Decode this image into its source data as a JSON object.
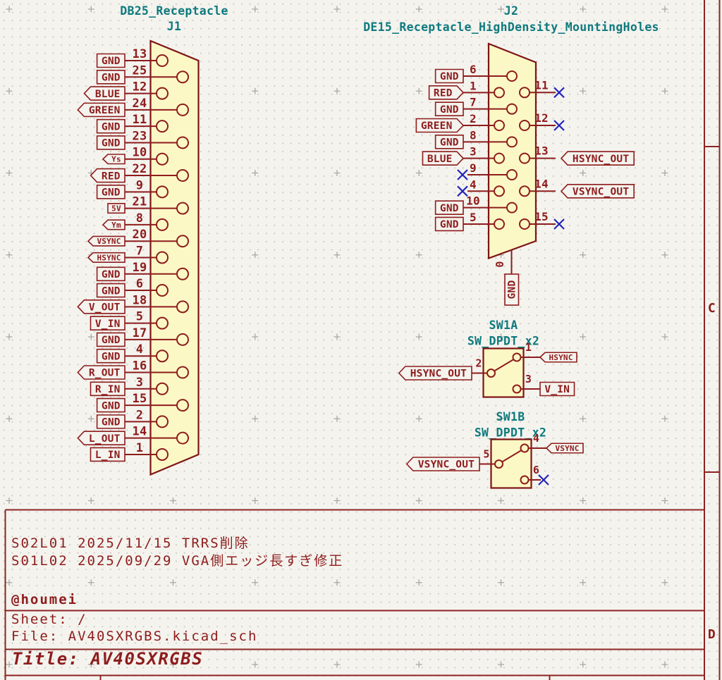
{
  "colors": {
    "bg": "#f4f3ee",
    "grid_dot": "#c7c6c0",
    "grid_cross": "#a9a8a2",
    "wire": "#8e1c1c",
    "outline": "#7e1414",
    "body_fill": "#fbf8c5",
    "teal": "#0e7a7e",
    "noconnect": "#2424bb",
    "border": "#8e2424"
  },
  "sheet": {
    "zone_c": "C",
    "zone_d": "D"
  },
  "components": {
    "j1": {
      "ref": "J1",
      "value": "DB25_Receptacle",
      "pins": [
        {
          "n": "13",
          "label": "GND",
          "shape": "box",
          "size": "l"
        },
        {
          "n": "25",
          "label": "GND",
          "shape": "box",
          "size": "l"
        },
        {
          "n": "12",
          "label": "BLUE",
          "shape": "arrow",
          "size": "l"
        },
        {
          "n": "24",
          "label": "GREEN",
          "shape": "arrow",
          "size": "l"
        },
        {
          "n": "11",
          "label": "GND",
          "shape": "box",
          "size": "l"
        },
        {
          "n": "23",
          "label": "GND",
          "shape": "box",
          "size": "l"
        },
        {
          "n": "10",
          "label": "Ys",
          "shape": "arrow",
          "size": "s"
        },
        {
          "n": "22",
          "label": "RED",
          "shape": "arrow",
          "size": "l"
        },
        {
          "n": "9",
          "label": "GND",
          "shape": "box",
          "size": "l"
        },
        {
          "n": "21",
          "label": "5V",
          "shape": "box",
          "size": "s"
        },
        {
          "n": "8",
          "label": "Ym",
          "shape": "arrow",
          "size": "s"
        },
        {
          "n": "20",
          "label": "VSYNC",
          "shape": "arrow",
          "size": "s"
        },
        {
          "n": "7",
          "label": "HSYNC",
          "shape": "arrow",
          "size": "s"
        },
        {
          "n": "19",
          "label": "GND",
          "shape": "box",
          "size": "l"
        },
        {
          "n": "6",
          "label": "GND",
          "shape": "box",
          "size": "l"
        },
        {
          "n": "18",
          "label": "V_OUT",
          "shape": "arrow",
          "size": "l"
        },
        {
          "n": "5",
          "label": "V_IN",
          "shape": "box",
          "size": "l"
        },
        {
          "n": "17",
          "label": "GND",
          "shape": "box",
          "size": "l"
        },
        {
          "n": "4",
          "label": "GND",
          "shape": "box",
          "size": "l"
        },
        {
          "n": "16",
          "label": "R_OUT",
          "shape": "arrow",
          "size": "l"
        },
        {
          "n": "3",
          "label": "R_IN",
          "shape": "box",
          "size": "l"
        },
        {
          "n": "15",
          "label": "GND",
          "shape": "box",
          "size": "l"
        },
        {
          "n": "2",
          "label": "GND",
          "shape": "box",
          "size": "l"
        },
        {
          "n": "14",
          "label": "L_OUT",
          "shape": "arrow",
          "size": "l"
        },
        {
          "n": "1",
          "label": "L_IN",
          "shape": "box",
          "size": "l"
        }
      ]
    },
    "j2": {
      "ref": "J2",
      "value": "DE15_Receptacle_HighDensity_MountingHoles",
      "left_pins": [
        {
          "n": "6",
          "label": "GND",
          "shape": "box"
        },
        {
          "n": "1",
          "label": "RED",
          "shape": "arrow"
        },
        {
          "n": "7",
          "label": "GND",
          "shape": "box"
        },
        {
          "n": "2",
          "label": "GREEN",
          "shape": "arrow"
        },
        {
          "n": "8",
          "label": "GND",
          "shape": "box"
        },
        {
          "n": "3",
          "label": "BLUE",
          "shape": "arrow"
        },
        {
          "n": "9",
          "nc": true
        },
        {
          "n": "4",
          "nc": true
        },
        {
          "n": "10",
          "label": "GND",
          "shape": "box"
        },
        {
          "n": "5",
          "label": "GND",
          "shape": "box"
        }
      ],
      "right_pins": [
        {
          "n": "11",
          "nc": true
        },
        {
          "n": "12",
          "nc": true
        },
        {
          "n": "13",
          "label": "HSYNC_OUT",
          "shape": "arrow"
        },
        {
          "n": "14",
          "label": "VSYNC_OUT",
          "shape": "arrow"
        },
        {
          "n": "15",
          "nc": true
        }
      ],
      "bottom_pin": {
        "n": "0",
        "label": "GND"
      }
    },
    "sw1a": {
      "ref": "SW1A",
      "value": "SW_DPDT_x2",
      "pins": [
        {
          "n": "1",
          "label": "HSYNC",
          "shape": "arrow",
          "size": "s"
        },
        {
          "n": "2",
          "label": "HSYNC_OUT",
          "shape": "arrow",
          "size": "l"
        },
        {
          "n": "3",
          "label": "V_IN",
          "shape": "box",
          "size": "l"
        }
      ]
    },
    "sw1b": {
      "ref": "SW1B",
      "value": "SW_DPDT_x2",
      "pins": [
        {
          "n": "4",
          "label": "VSYNC",
          "shape": "arrow",
          "size": "s"
        },
        {
          "n": "5",
          "label": "VSYNC_OUT",
          "shape": "arrow",
          "size": "l"
        },
        {
          "n": "6",
          "nc": true
        }
      ]
    }
  },
  "title_block": {
    "comment2": "S02L01 2025/11/15 TRRS削除",
    "comment1": "S01L02 2025/09/29 VGA側エッジ長すぎ修正",
    "author": "@houmei",
    "sheet_label": "Sheet: /",
    "file_label": "File: AV40SXRGBS.kicad_sch",
    "title_label": "Title: AV40SXRGBS"
  }
}
